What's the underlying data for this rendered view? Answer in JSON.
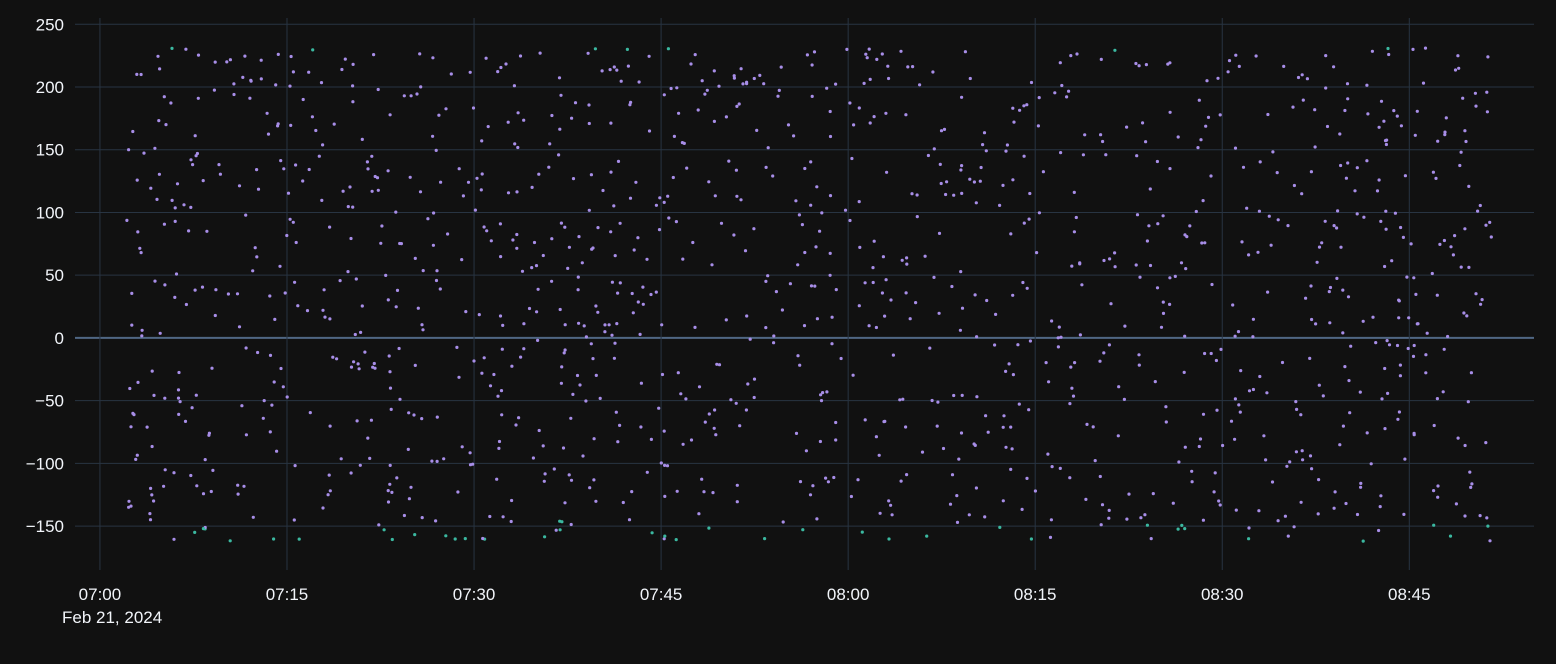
{
  "chart_data": {
    "type": "scatter",
    "title": "",
    "xlabel": "",
    "ylabel": "",
    "x_axis": {
      "type": "time",
      "range": [
        "2024-02-21 06:58",
        "2024-02-21 08:55"
      ],
      "ticks": [
        {
          "value": "2024-02-21 07:00",
          "label": "07:00"
        },
        {
          "value": "2024-02-21 07:15",
          "label": "07:15"
        },
        {
          "value": "2024-02-21 07:30",
          "label": "07:30"
        },
        {
          "value": "2024-02-21 07:45",
          "label": "07:45"
        },
        {
          "value": "2024-02-21 08:00",
          "label": "08:00"
        },
        {
          "value": "2024-02-21 08:15",
          "label": "08:15"
        },
        {
          "value": "2024-02-21 08:30",
          "label": "08:30"
        },
        {
          "value": "2024-02-21 08:45",
          "label": "08:45"
        }
      ],
      "date_label": "Feb 21, 2024"
    },
    "y_axis": {
      "range": [
        -185,
        255
      ],
      "ticks": [
        -150,
        -100,
        -50,
        0,
        50,
        100,
        150,
        200,
        250
      ],
      "tick_labels": [
        "−150",
        "−100",
        "−50",
        "0",
        "50",
        "100",
        "150",
        "200",
        "250"
      ]
    },
    "grid": true,
    "legend": "none",
    "colors": {
      "background": "#111111",
      "grid": "#283442",
      "zero_line": "#506784",
      "text": "#f2f5fa",
      "marker": "#a88ee8",
      "marker_low": "#3bb8a0"
    },
    "series": [
      {
        "x_start": "2024-02-21 07:02",
        "x_end": "2024-02-21 08:51",
        "y_min": -162,
        "y_max": 231,
        "count": 1200,
        "points": [
          [
            "2024-02-21 07:02",
            150
          ],
          [
            "2024-02-21 07:02",
            -135
          ],
          [
            "2024-02-21 07:03",
            210
          ],
          [
            "2024-02-21 07:03",
            68
          ],
          [
            "2024-02-21 07:04",
            -130
          ],
          [
            "2024-02-21 07:05",
            170
          ],
          [
            "2024-02-21 07:06",
            -48
          ],
          [
            "2024-02-21 07:07",
            142
          ],
          [
            "2024-02-21 07:08",
            -152
          ],
          [
            "2024-02-21 07:10",
            35
          ],
          [
            "2024-02-21 07:12",
            -143
          ],
          [
            "2024-02-21 07:14",
            226
          ],
          [
            "2024-02-21 07:16",
            190
          ],
          [
            "2024-02-21 07:18",
            -125
          ],
          [
            "2024-02-21 07:20",
            218
          ],
          [
            "2024-02-21 07:23",
            -40
          ],
          [
            "2024-02-21 07:26",
            95
          ],
          [
            "2024-02-21 07:29",
            -160
          ],
          [
            "2024-02-21 07:32",
            10
          ],
          [
            "2024-02-21 07:35",
            227
          ],
          [
            "2024-02-21 07:38",
            -30
          ],
          [
            "2024-02-21 07:42",
            230
          ],
          [
            "2024-02-21 07:45",
            -158
          ],
          [
            "2024-02-21 07:48",
            205
          ],
          [
            "2024-02-21 07:51",
            -70
          ],
          [
            "2024-02-21 07:53",
            -160
          ],
          [
            "2024-02-21 07:57",
            228
          ],
          [
            "2024-02-21 07:58",
            -43
          ],
          [
            "2024-02-21 08:00",
            143
          ],
          [
            "2024-02-21 08:02",
            222
          ],
          [
            "2024-02-21 08:06",
            -158
          ],
          [
            "2024-02-21 08:10",
            1
          ],
          [
            "2024-02-21 08:13",
            172
          ],
          [
            "2024-02-21 08:16",
            -145
          ],
          [
            "2024-02-21 08:20",
            222
          ],
          [
            "2024-02-21 08:24",
            -160
          ],
          [
            "2024-02-21 08:28",
            158
          ],
          [
            "2024-02-21 08:31",
            5
          ],
          [
            "2024-02-21 08:35",
            -158
          ],
          [
            "2024-02-21 08:38",
            225
          ],
          [
            "2024-02-21 08:41",
            -162
          ],
          [
            "2024-02-21 08:44",
            88
          ],
          [
            "2024-02-21 08:45",
            230
          ],
          [
            "2024-02-21 08:46",
            231
          ],
          [
            "2024-02-21 08:48",
            -158
          ],
          [
            "2024-02-21 08:50",
            195
          ],
          [
            "2024-02-21 08:51",
            224
          ],
          [
            "2024-02-21 08:51",
            -150
          ]
        ]
      }
    ]
  }
}
